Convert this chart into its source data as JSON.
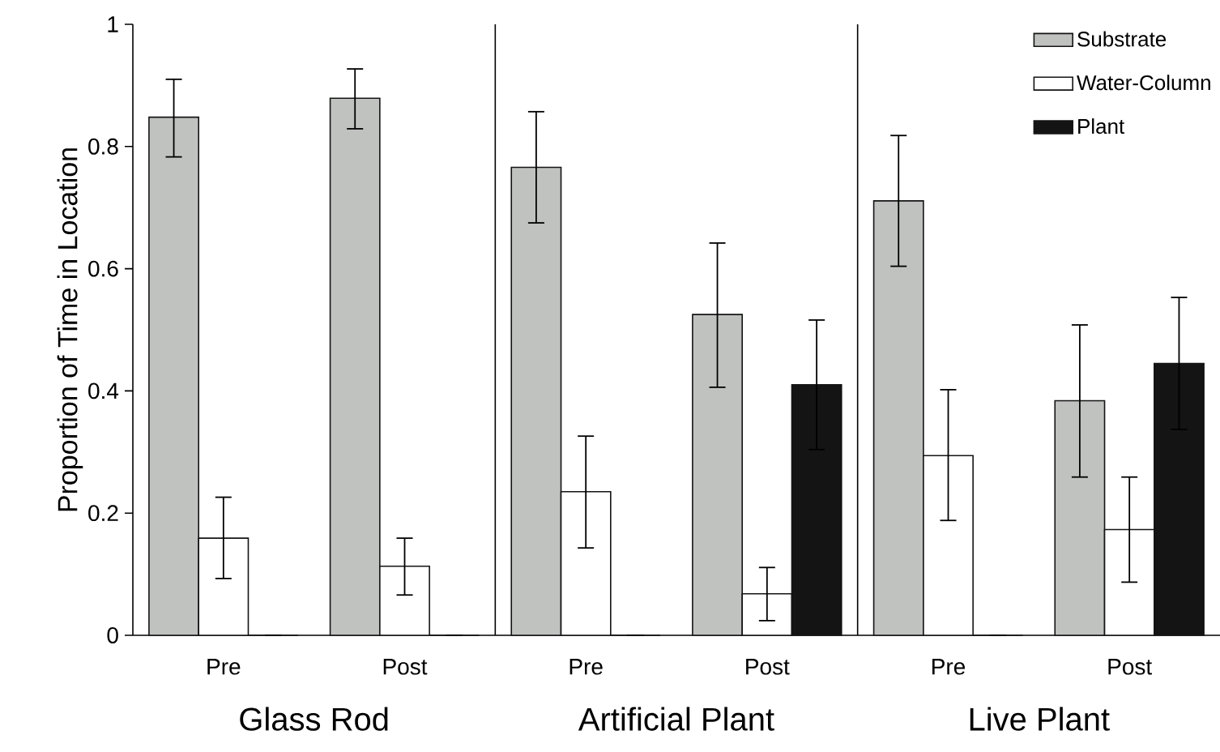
{
  "chart_data": {
    "type": "bar",
    "ylabel": "Proportion of Time in Location",
    "categories": [
      "Pre",
      "Post",
      "Pre",
      "Post",
      "Pre",
      "Post"
    ],
    "series": [
      {
        "name": "Substrate",
        "color": "#c0c2c0",
        "values": [
          0.848,
          0.879,
          0.766,
          0.525,
          0.711,
          0.384
        ],
        "errors": [
          [
            0.783,
            0.91
          ],
          [
            0.829,
            0.927
          ],
          [
            0.675,
            0.857
          ],
          [
            0.406,
            0.642
          ],
          [
            0.604,
            0.818
          ],
          [
            0.259,
            0.508
          ]
        ]
      },
      {
        "name": "Water-Column",
        "color": "#ffffff",
        "values": [
          0.159,
          0.113,
          0.235,
          0.068,
          0.294,
          0.173
        ],
        "errors": [
          [
            0.093,
            0.226
          ],
          [
            0.066,
            0.159
          ],
          [
            0.143,
            0.326
          ],
          [
            0.024,
            0.111
          ],
          [
            0.188,
            0.402
          ],
          [
            0.087,
            0.259
          ]
        ]
      },
      {
        "name": "Plant",
        "color": "#141414",
        "values": [
          0,
          0,
          0,
          0.41,
          0,
          0.445
        ],
        "errors": [
          null,
          null,
          null,
          0.106,
          null,
          0.108
        ]
      }
    ],
    "ylim": [
      0,
      1
    ],
    "yticks": [
      0,
      0.2,
      0.4,
      0.6,
      0.8,
      1
    ],
    "annotations": [
      "Glass Rod",
      "Artificial Plant",
      "Live Plant"
    ],
    "legend": "top right",
    "grid": false
  }
}
